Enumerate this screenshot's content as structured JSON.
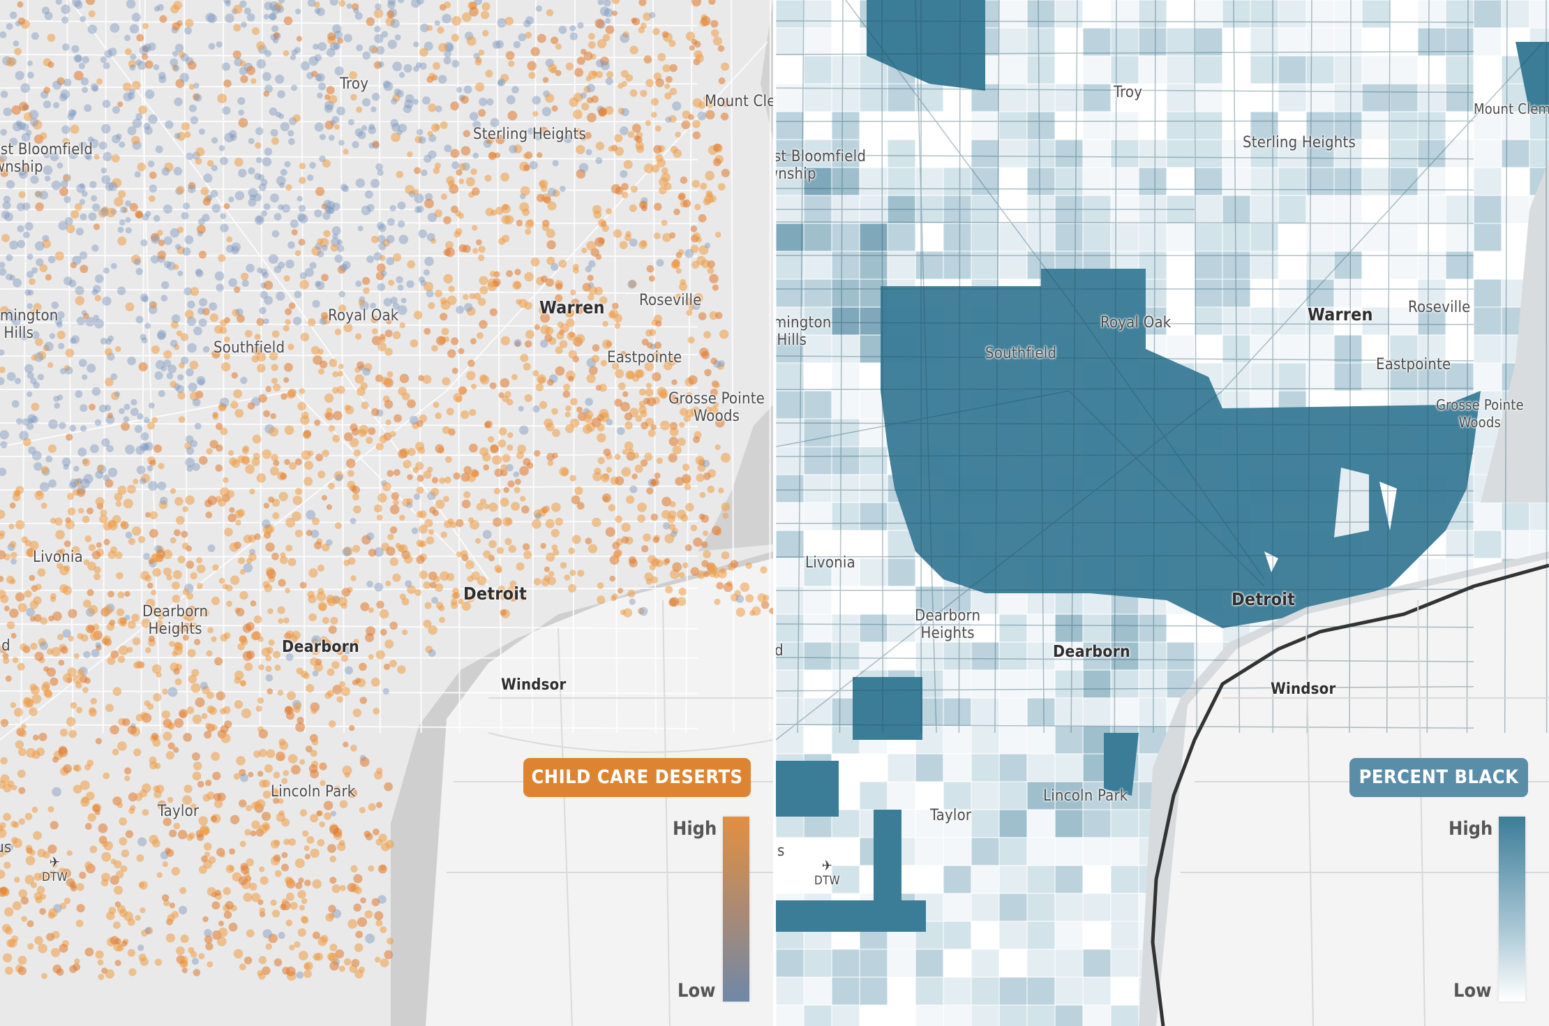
{
  "left_map": {
    "legend": {
      "title": "CHILD CARE DESERTS",
      "high": "High",
      "low": "Low",
      "color_high": "#e38f40",
      "color_low": "#6f88a8"
    }
  },
  "right_map": {
    "legend": {
      "title": "PERCENT BLACK",
      "high": "High",
      "low": "Low",
      "color_high": "#2f7894",
      "color_low": "#ffffff"
    }
  },
  "labels": {
    "troy": "Troy",
    "mount_clemens": "Mount Clemens",
    "sterling_heights": "Sterling Heights",
    "west_bloomfield": "West Bloomfield\nTownship",
    "farmington_hills": "Farmington\nHills",
    "royal_oak": "Royal Oak",
    "warren": "Warren",
    "roseville": "Roseville",
    "southfield": "Southfield",
    "eastpointe": "Eastpointe",
    "grosse_pointe_woods": "Grosse Pointe\nWoods",
    "livonia": "Livonia",
    "dearborn_heights": "Dearborn\nHeights",
    "detroit": "Detroit",
    "westland": "Westland",
    "dearborn": "Dearborn",
    "windsor": "Windsor",
    "lincoln_park": "Lincoln Park",
    "taylor": "Taylor",
    "romulus": "Romulus",
    "dtw": "DTW"
  }
}
